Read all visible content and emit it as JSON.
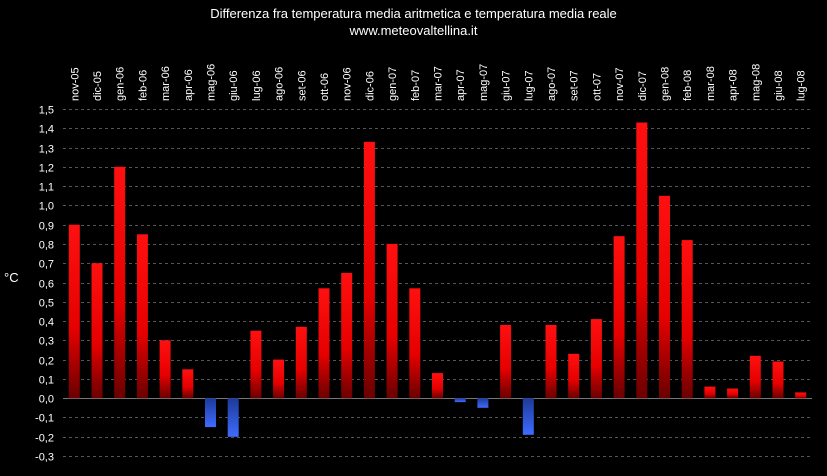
{
  "chart_data": {
    "type": "bar",
    "title": "Differenza fra temperatura media aritmetica e temperatura media reale",
    "subtitle": "www.meteovaltellina.it",
    "xlabel": "",
    "ylabel": "°C",
    "ylim": [
      -0.3,
      1.5
    ],
    "ytick_step": 0.1,
    "grid": true,
    "colors": {
      "positive": "#ff0000",
      "negative": "#3366ff",
      "background": "#000000",
      "grid": "#555555",
      "text": "#ffffff"
    },
    "categories": [
      "nov-05",
      "dic-05",
      "gen-06",
      "feb-06",
      "mar-06",
      "apr-06",
      "mag-06",
      "giu-06",
      "lug-06",
      "ago-06",
      "set-06",
      "ott-06",
      "nov-06",
      "dic-06",
      "gen-07",
      "feb-07",
      "mar-07",
      "apr-07",
      "mag-07",
      "giu-07",
      "lug-07",
      "ago-07",
      "set-07",
      "ott-07",
      "nov-07",
      "dic-07",
      "gen-08",
      "feb-08",
      "mar-08",
      "apr-08",
      "mag-08",
      "giu-08",
      "lug-08"
    ],
    "values": [
      0.9,
      0.7,
      1.2,
      0.85,
      0.3,
      0.15,
      -0.15,
      -0.2,
      0.35,
      0.2,
      0.37,
      0.57,
      0.65,
      1.33,
      0.8,
      0.57,
      0.13,
      -0.02,
      -0.05,
      0.38,
      -0.19,
      0.38,
      0.23,
      0.41,
      0.84,
      1.43,
      1.05,
      0.82,
      0.06,
      0.05,
      0.22,
      0.19,
      0.03
    ]
  }
}
